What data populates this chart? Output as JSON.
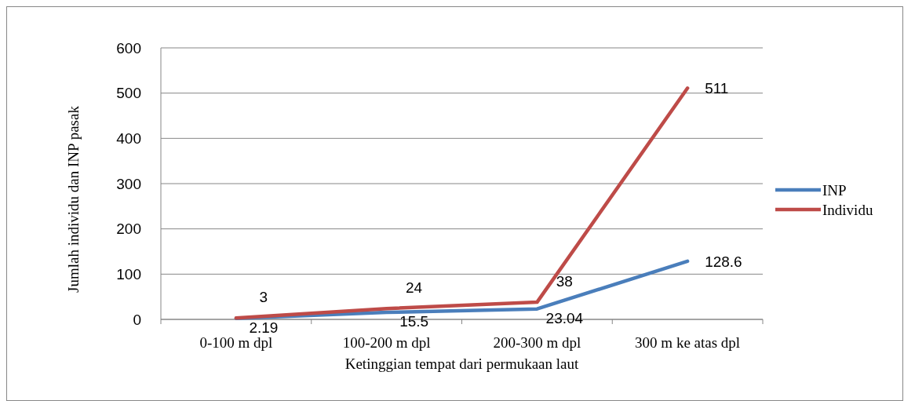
{
  "chart_data": {
    "type": "line",
    "xlabel": "Ketinggian tempat dari permukaan laut",
    "ylabel": "Jumlah individu dan INP pasak",
    "categories": [
      "0-100 m dpl",
      "100-200 m dpl",
      "200-300 m dpl",
      "300 m ke atas dpl"
    ],
    "series": [
      {
        "name": "INP",
        "color": "#4a7ebb",
        "values": [
          2.19,
          15.5,
          23.04,
          128.6
        ]
      },
      {
        "name": "Individu",
        "color": "#be4b48",
        "values": [
          3,
          24,
          38,
          511
        ]
      }
    ],
    "ylim": [
      0,
      600
    ],
    "yticks": [
      0,
      100,
      200,
      300,
      400,
      500,
      600
    ],
    "grid": "y",
    "legend": "right",
    "data_labels": true,
    "marker": "none",
    "line_style": "solid"
  }
}
